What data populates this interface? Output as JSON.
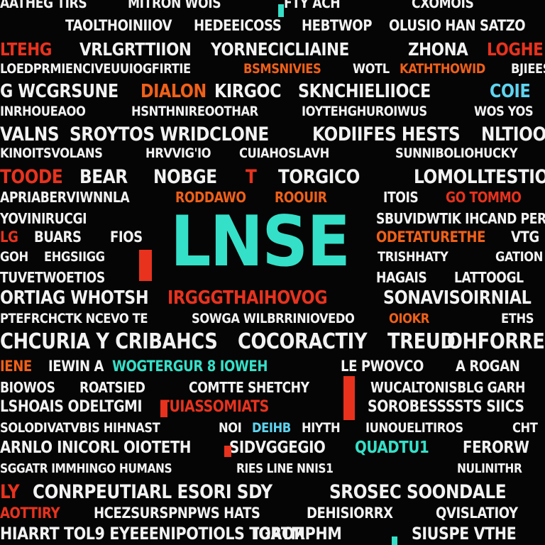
{
  "colors": {
    "white": "#f2f2f2",
    "red": "#e8321e",
    "orange": "#f06018",
    "teal": "#35e0c8",
    "cyan": "#5fd4f0",
    "background": "#050505"
  },
  "hero": {
    "text": "LNSE",
    "color": "#35e0c8"
  },
  "rows": [
    {
      "words": [
        {
          "text": "AATHEG TIRS",
          "c": "white"
        },
        {
          "text": "MITRON WOIS",
          "c": "white"
        },
        {
          "text": "FTY ACH",
          "c": "white"
        },
        {
          "text": "CXOMOIS",
          "c": "white"
        }
      ]
    },
    {
      "words": [
        {
          "text": "TAOLTHOINIIOV",
          "c": "white"
        },
        {
          "text": "HEDEEICOSS",
          "c": "white"
        },
        {
          "text": "HEBTWOP",
          "c": "white"
        },
        {
          "text": "OLUSIO HAN SATZO",
          "c": "white"
        }
      ]
    },
    {
      "words": [
        {
          "text": "LTEHG",
          "c": "red"
        },
        {
          "text": "VRLGRTTIION",
          "c": "white"
        },
        {
          "text": "YORNECICLIAINE",
          "c": "white"
        },
        {
          "text": "ZHONA",
          "c": "white"
        },
        {
          "text": "LOGHE",
          "c": "red"
        }
      ]
    },
    {
      "words": [
        {
          "text": "LOEDPRMIENCIVEUUIOGFIRTIE",
          "c": "white"
        },
        {
          "text": "BSMSNIVIES",
          "c": "orange"
        },
        {
          "text": "WOTL",
          "c": "white"
        },
        {
          "text": "KATHTHOWID",
          "c": "orange"
        },
        {
          "text": "BJIEES",
          "c": "white"
        }
      ]
    },
    {
      "words": [
        {
          "text": "G WCGRSUNE",
          "c": "white"
        },
        {
          "text": "DIALON",
          "c": "orange"
        },
        {
          "text": "KIRGOC",
          "c": "white"
        },
        {
          "text": "SKNCHIELIIOCE",
          "c": "white"
        },
        {
          "text": "COIE",
          "c": "cyan"
        }
      ]
    },
    {
      "words": [
        {
          "text": "INRHOUEAOO",
          "c": "white"
        },
        {
          "text": "HSNTHNIREOOTHAR",
          "c": "white"
        },
        {
          "text": "IOYTEHGHUROIWUS",
          "c": "white"
        },
        {
          "text": "WOS YOS",
          "c": "white"
        }
      ]
    },
    {
      "words": [
        {
          "text": "VALNS",
          "c": "white"
        },
        {
          "text": "SROYTOS WRIDCLONE",
          "c": "white"
        },
        {
          "text": "KODIIFES HESTS",
          "c": "white"
        },
        {
          "text": "NLTIOOG",
          "c": "white"
        }
      ]
    },
    {
      "words": [
        {
          "text": "KINOITSVOLANS",
          "c": "white"
        },
        {
          "text": "HRVVIG'IO",
          "c": "white"
        },
        {
          "text": "CUIAHOSLAVH",
          "c": "white"
        },
        {
          "text": "SUNNIBOLIOHUCKY",
          "c": "white"
        }
      ]
    },
    {
      "words": [
        {
          "text": "TOODE",
          "c": "red"
        },
        {
          "text": "BEAR",
          "c": "white"
        },
        {
          "text": "NOBGE",
          "c": "white"
        },
        {
          "text": "T",
          "c": "red"
        },
        {
          "text": "TORGICO",
          "c": "white"
        },
        {
          "text": "LOMOLLTESTIOS",
          "c": "white"
        }
      ]
    },
    {
      "words": [
        {
          "text": "APRIABERVIWNNLA",
          "c": "white"
        },
        {
          "text": "RODDAWO",
          "c": "orange"
        },
        {
          "text": "ROOUIR",
          "c": "orange"
        },
        {
          "text": "ITOIS",
          "c": "white"
        },
        {
          "text": "GO TOMMO",
          "c": "red"
        }
      ]
    },
    {
      "words": [
        {
          "text": "YOVINIRUCGI",
          "c": "white"
        },
        {
          "text": "SBUVIDWTIK IHCAND PER",
          "c": "white"
        }
      ]
    },
    {
      "words": [
        {
          "text": "LG",
          "c": "red"
        },
        {
          "text": "BUARS",
          "c": "white"
        },
        {
          "text": "FIOS",
          "c": "white"
        },
        {
          "text": "ODETATURETHE",
          "c": "orange"
        },
        {
          "text": "VTG",
          "c": "white"
        }
      ]
    },
    {
      "words": [
        {
          "text": "GOH",
          "c": "white"
        },
        {
          "text": "EHGSIIGG",
          "c": "white"
        },
        {
          "text": "TRISHHATY",
          "c": "white"
        },
        {
          "text": "GATION",
          "c": "white"
        }
      ]
    },
    {
      "words": [
        {
          "text": "TUVETWOETIOS",
          "c": "white"
        },
        {
          "text": "HAGAIS",
          "c": "white"
        },
        {
          "text": "LATTOOGL",
          "c": "white"
        }
      ]
    },
    {
      "words": [
        {
          "text": "ORTIAG WHOTSH",
          "c": "white"
        },
        {
          "text": "IRGGGTHAIHOVOG",
          "c": "red"
        },
        {
          "text": "SONAVISOIRNIAL",
          "c": "white"
        }
      ]
    },
    {
      "words": [
        {
          "text": "PTEFRCHCTK NCEVO TE",
          "c": "white"
        },
        {
          "text": "SOWGA WILBRRINIOVEDO",
          "c": "white"
        },
        {
          "text": "OIOKR",
          "c": "orange"
        },
        {
          "text": "ETHS",
          "c": "white"
        }
      ]
    },
    {
      "words": [
        {
          "text": "CHCURIA Y CRIBAHCS",
          "c": "white"
        },
        {
          "text": "COCORACTIY",
          "c": "white"
        },
        {
          "text": "TREUD",
          "c": "white"
        },
        {
          "text": "OHFORRENE",
          "c": "white"
        }
      ]
    },
    {
      "words": [
        {
          "text": "IENE",
          "c": "orange"
        },
        {
          "text": "IEWIN A",
          "c": "white"
        },
        {
          "text": "WOGTERGUR 8 IOWEH",
          "c": "teal"
        },
        {
          "text": "LE PWOVCO",
          "c": "white"
        },
        {
          "text": "A ROGAN",
          "c": "white"
        }
      ]
    },
    {
      "words": [
        {
          "text": "BIOWOS",
          "c": "white"
        },
        {
          "text": "ROATSIED",
          "c": "white"
        },
        {
          "text": "COMTTE SHETCHY",
          "c": "white"
        },
        {
          "text": "WUCALTONISBLG GARH",
          "c": "white"
        }
      ]
    },
    {
      "words": [
        {
          "text": "LSHOAIS ODELTGMI",
          "c": "white"
        },
        {
          "text": "TUIASSOMIATS",
          "c": "red"
        },
        {
          "text": "SOROBESSSSTS SIICS",
          "c": "white"
        }
      ]
    },
    {
      "words": [
        {
          "text": "SOLODIVATVBIS HIHNAST",
          "c": "white"
        },
        {
          "text": "NOI",
          "c": "white"
        },
        {
          "text": "DEIHB",
          "c": "cyan"
        },
        {
          "text": "HIYTH",
          "c": "white"
        },
        {
          "text": "IUNOUELITIROS",
          "c": "white"
        },
        {
          "text": "CHT",
          "c": "white"
        }
      ]
    },
    {
      "words": [
        {
          "text": "ARNLO INICORL OIOTETH",
          "c": "white"
        },
        {
          "text": "SIDVGGEGIO",
          "c": "white"
        },
        {
          "text": "QUADTU1",
          "c": "teal"
        },
        {
          "text": "FERORW",
          "c": "white"
        }
      ]
    },
    {
      "words": [
        {
          "text": "SGGATR IMMHINGO HUMANS",
          "c": "white"
        },
        {
          "text": "RIES LINE NNIS1",
          "c": "white"
        },
        {
          "text": "NULINITHR",
          "c": "white"
        }
      ]
    },
    {
      "words": [
        {
          "text": "LY",
          "c": "red"
        },
        {
          "text": "CONRPEUTIARL ESORI SDY",
          "c": "white"
        },
        {
          "text": "SROSEC SOONDALE",
          "c": "white"
        }
      ]
    },
    {
      "words": [
        {
          "text": "AOTTIRY",
          "c": "red"
        },
        {
          "text": "HCEZSURSPNPWS HATS",
          "c": "white"
        },
        {
          "text": "DEHISIORRX",
          "c": "white"
        },
        {
          "text": "QVISLATIOY",
          "c": "white"
        }
      ]
    },
    {
      "words": [
        {
          "text": "HIARRT TOL9 EYEEENIPOTIOLS TGAOR",
          "c": "white"
        },
        {
          "text": "IORTMPHM",
          "c": "white"
        },
        {
          "text": "SIUSPE VTHE",
          "c": "white"
        }
      ]
    }
  ]
}
